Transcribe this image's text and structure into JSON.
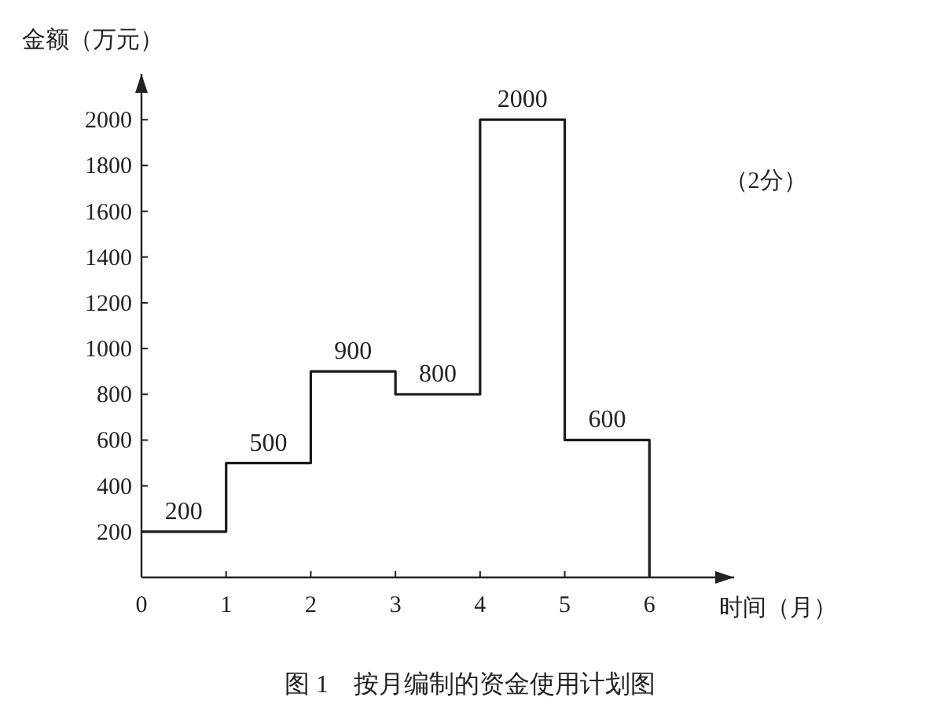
{
  "chart_data": {
    "type": "step",
    "xlabel": "时间（月）",
    "ylabel": "金额（万元）",
    "x": [
      0,
      1,
      2,
      3,
      4,
      5,
      6
    ],
    "values": [
      200,
      500,
      900,
      800,
      2000,
      600,
      0
    ],
    "value_labels": [
      "200",
      "500",
      "900",
      "800",
      "2000",
      "600",
      null
    ],
    "color": "#1a1a1a",
    "xlim": [
      0,
      7
    ],
    "ylim": [
      0,
      2200
    ],
    "xticks": [
      0,
      1,
      2,
      3,
      4,
      5,
      6
    ],
    "yticks": [
      200,
      400,
      600,
      800,
      1000,
      1200,
      1400,
      1600,
      1800,
      2000
    ],
    "annotations": [
      "（2分）",
      "图 1　按月编制的资金使用计划图"
    ]
  }
}
